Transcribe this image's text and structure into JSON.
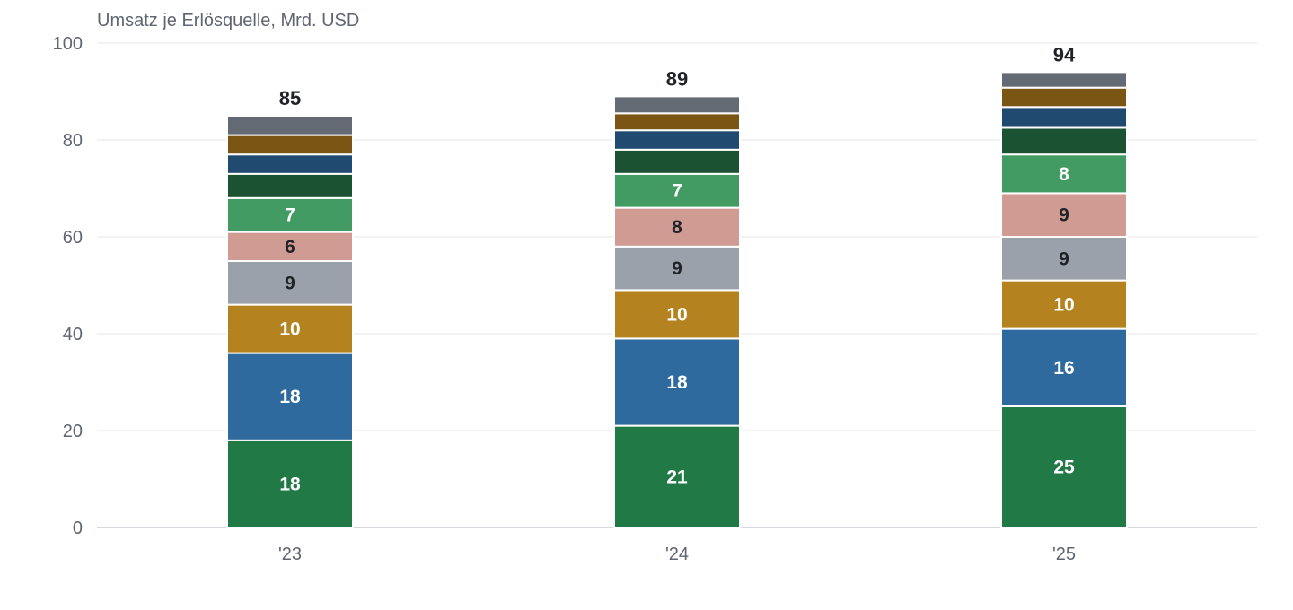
{
  "chart_data": {
    "type": "bar",
    "stacked": true,
    "title": "Umsatz je Erlösquelle, Mrd. USD",
    "categories": [
      "'23",
      "'24",
      "'25"
    ],
    "ylim": [
      0,
      100
    ],
    "yticks": [
      "0",
      "20",
      "40",
      "60",
      "80",
      "100"
    ],
    "grid": true,
    "totals": [
      85,
      89,
      94
    ],
    "series": [
      {
        "values": [
          18,
          21,
          25
        ],
        "labels": [
          "18",
          "21",
          "25"
        ],
        "color": "#217a46",
        "label_color": "#ffffff"
      },
      {
        "values": [
          18,
          18,
          16
        ],
        "labels": [
          "18",
          "18",
          "16"
        ],
        "color": "#2e6a9e",
        "label_color": "#ffffff"
      },
      {
        "values": [
          10,
          10,
          10
        ],
        "labels": [
          "10",
          "10",
          "10"
        ],
        "color": "#b4831f",
        "label_color": "#ffffff"
      },
      {
        "values": [
          9,
          9,
          9
        ],
        "labels": [
          "9",
          "9",
          "9"
        ],
        "color": "#9aa1aa",
        "label_color": "#1f2328"
      },
      {
        "values": [
          6,
          8,
          9
        ],
        "labels": [
          "6",
          "8",
          "9"
        ],
        "color": "#d09b92",
        "label_color": "#1f2328"
      },
      {
        "values": [
          7,
          7,
          8
        ],
        "labels": [
          "7",
          "7",
          "8"
        ],
        "color": "#419b63",
        "label_color": "#ffffff"
      },
      {
        "values": [
          5,
          5,
          5.5
        ],
        "labels": [
          "",
          "",
          ""
        ],
        "color": "#1b5232",
        "label_color": "#ffffff"
      },
      {
        "values": [
          4,
          4,
          4.3
        ],
        "labels": [
          "",
          "",
          ""
        ],
        "color": "#214a70",
        "label_color": "#ffffff"
      },
      {
        "values": [
          4,
          3.5,
          4
        ],
        "labels": [
          "",
          "",
          ""
        ],
        "color": "#7a5514",
        "label_color": "#ffffff"
      },
      {
        "values": [
          4,
          3.5,
          3.2
        ],
        "labels": [
          "",
          "",
          ""
        ],
        "color": "#646a74",
        "label_color": "#ffffff"
      }
    ]
  }
}
